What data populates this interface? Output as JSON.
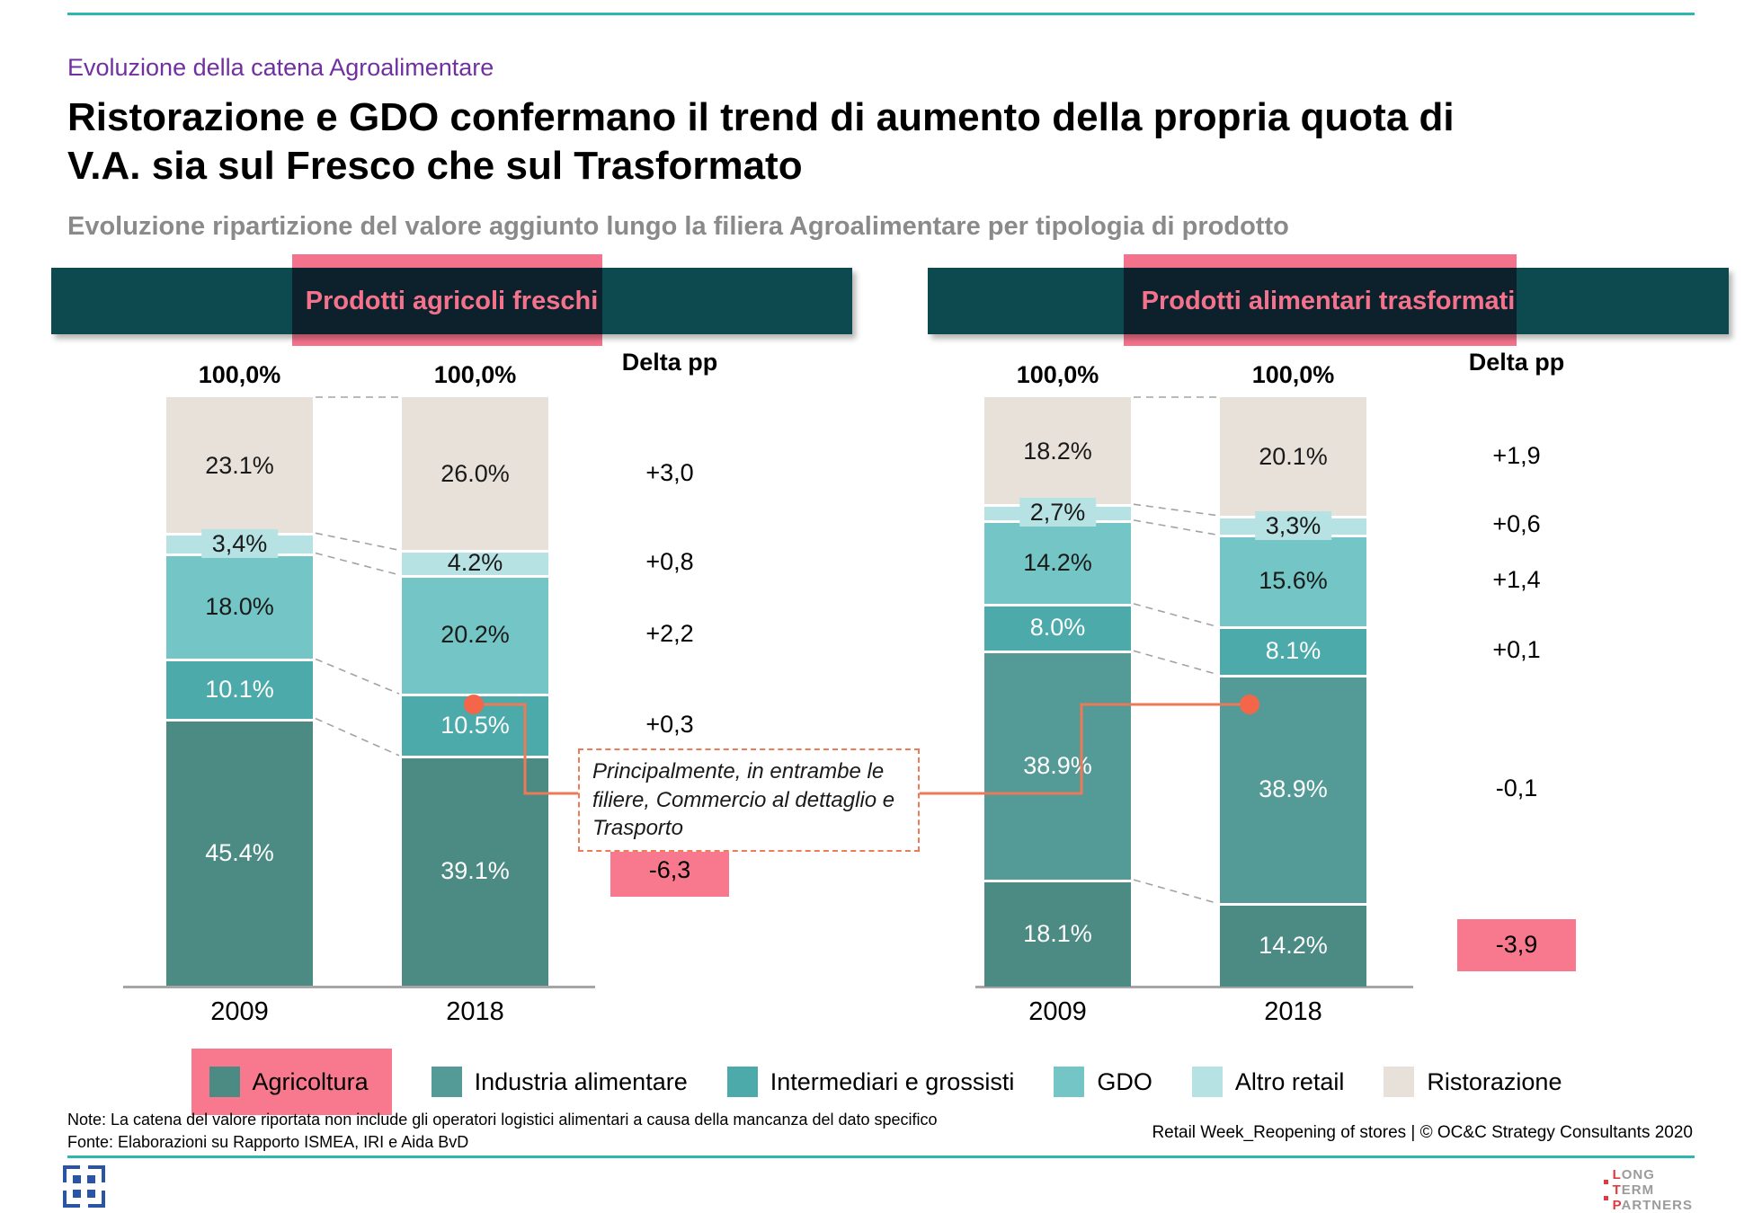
{
  "slide": {
    "kicker": "Evoluzione della catena Agroalimentare",
    "title_line1": "Ristorazione e GDO confermano il trend di aumento della propria quota di",
    "title_line2": "V.A. sia sul Fresco che sul Trasformato",
    "subtitle": "Evoluzione ripartizione del valore aggiunto lungo la filiera Agroalimentare per tipologia di prodotto"
  },
  "annotation": {
    "text": "Principalmente, in entrambe le filiere, Commercio al dettaglio e Trasporto"
  },
  "legend": {
    "items": [
      {
        "label": "Agricoltura",
        "color_key": "agricoltura",
        "highlighted": true
      },
      {
        "label": "Industria alimentare",
        "color_key": "industria",
        "highlighted": false
      },
      {
        "label": "Intermediari e grossisti",
        "color_key": "intermediari",
        "highlighted": false
      },
      {
        "label": "GDO",
        "color_key": "gdo",
        "highlighted": false
      },
      {
        "label": "Altro retail",
        "color_key": "altro_retail",
        "highlighted": false
      },
      {
        "label": "Ristorazione",
        "color_key": "ristorazione",
        "highlighted": false
      }
    ]
  },
  "footer": {
    "note": "Note: La catena del valore riportata non include gli operatori logistici alimentari a causa della mancanza del dato specifico",
    "source": "Fonte: Elaborazioni su Rapporto ISMEA, IRI e Aida BvD",
    "credit": "Retail Week_Reopening of stores | © OC&C Strategy Consultants 2020",
    "logo_lines": [
      "Long",
      "Term",
      "Partners"
    ]
  },
  "colors": {
    "accent_teal": "#2cb8b0",
    "kicker_purple": "#7030a0",
    "subtitle_gray": "#8a8a8a",
    "header_bar": "#0d4a4f",
    "pink_highlight": "#f4728c",
    "pink_box": "#f8798d",
    "callout_orange": "#ed7a57",
    "dot_orange": "#f4664a",
    "axis_gray": "#a6a6a6",
    "dashed_gray": "#a3a3a3",
    "segments": {
      "ristorazione": "#e8e1da",
      "altro_retail": "#b7e2e3",
      "gdo": "#73c6c5",
      "intermediari": "#4caaaa",
      "industria": "#549a97",
      "agricoltura": "#4b8b84"
    },
    "segment_text": {
      "ristorazione": "#1a1a1a",
      "altro_retail": "#1a1a1a",
      "gdo": "#1a1a1a",
      "intermediari": "#ffffff",
      "industria": "#ffffff",
      "agricoltura": "#ffffff"
    }
  },
  "chart_data": [
    {
      "type": "bar",
      "variant": "stacked-100",
      "title": "Prodotti agricoli freschi",
      "categories": [
        "2009",
        "2018"
      ],
      "totals_label": "100,0%",
      "delta_header": "Delta pp",
      "series_top_to_bottom": [
        {
          "name": "Ristorazione",
          "color_key": "ristorazione",
          "values": [
            23.1,
            26.0
          ],
          "labels": [
            "23.1%",
            "26.0%"
          ],
          "delta": "+3,0",
          "delta_boxed": false
        },
        {
          "name": "Altro retail",
          "color_key": "altro_retail",
          "values": [
            3.4,
            4.2
          ],
          "labels": [
            "3,4%",
            "4.2%"
          ],
          "delta": "+0,8",
          "delta_boxed": false
        },
        {
          "name": "GDO",
          "color_key": "gdo",
          "values": [
            18.0,
            20.2
          ],
          "labels": [
            "18.0%",
            "20.2%"
          ],
          "delta": "+2,2",
          "delta_boxed": false
        },
        {
          "name": "Intermediari e grossisti",
          "color_key": "intermediari",
          "values": [
            10.1,
            10.5
          ],
          "labels": [
            "10.1%",
            "10.5%"
          ],
          "delta": "+0,3",
          "delta_boxed": false
        },
        {
          "name": "Agricoltura",
          "color_key": "agricoltura",
          "values": [
            45.4,
            39.1
          ],
          "labels": [
            "45.4%",
            "39.1%"
          ],
          "delta": "-6,3",
          "delta_boxed": true
        }
      ]
    },
    {
      "type": "bar",
      "variant": "stacked-100",
      "title": "Prodotti alimentari trasformati",
      "categories": [
        "2009",
        "2018"
      ],
      "totals_label": "100,0%",
      "delta_header": "Delta pp",
      "series_top_to_bottom": [
        {
          "name": "Ristorazione",
          "color_key": "ristorazione",
          "values": [
            18.2,
            20.1
          ],
          "labels": [
            "18.2%",
            "20.1%"
          ],
          "delta": "+1,9",
          "delta_boxed": false
        },
        {
          "name": "Altro retail",
          "color_key": "altro_retail",
          "values": [
            2.7,
            3.3
          ],
          "labels": [
            "2,7%",
            "3,3%"
          ],
          "delta": "+0,6",
          "delta_boxed": false
        },
        {
          "name": "GDO",
          "color_key": "gdo",
          "values": [
            14.2,
            15.6
          ],
          "labels": [
            "14.2%",
            "15.6%"
          ],
          "delta": "+1,4",
          "delta_boxed": false
        },
        {
          "name": "Intermediari e grossisti",
          "color_key": "intermediari",
          "values": [
            8.0,
            8.1
          ],
          "labels": [
            "8.0%",
            "8.1%"
          ],
          "delta": "+0,1",
          "delta_boxed": false
        },
        {
          "name": "Industria alimentare",
          "color_key": "industria",
          "values": [
            38.9,
            38.9
          ],
          "labels": [
            "38.9%",
            "38.9%"
          ],
          "delta": "-0,1",
          "delta_boxed": false
        },
        {
          "name": "Agricoltura",
          "color_key": "agricoltura",
          "values": [
            18.1,
            14.2
          ],
          "labels": [
            "18.1%",
            "14.2%"
          ],
          "delta": "-3,9",
          "delta_boxed": true
        }
      ]
    }
  ]
}
